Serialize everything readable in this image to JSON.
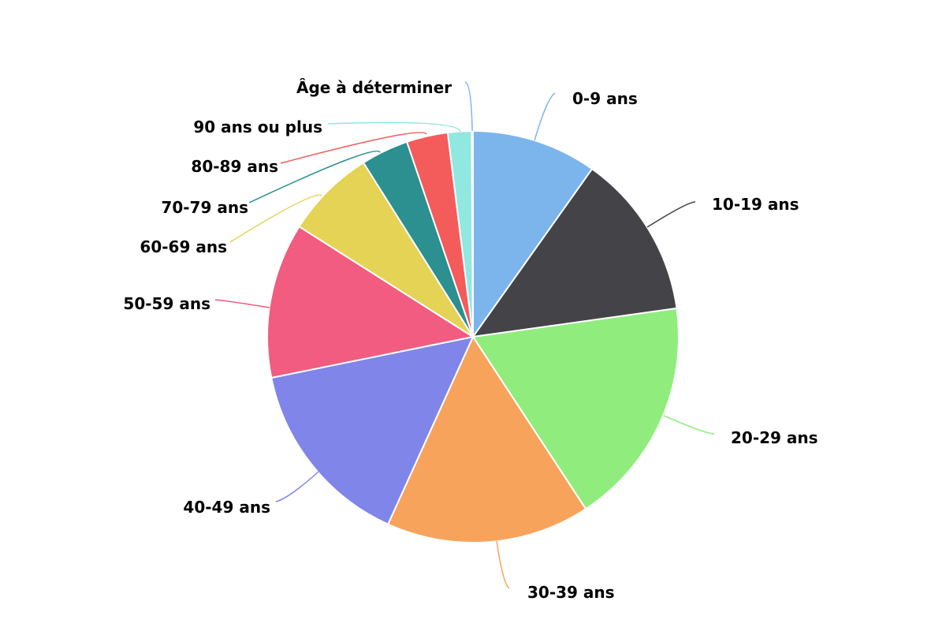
{
  "chart_data": {
    "type": "pie",
    "title": "",
    "start_angle_deg": 0,
    "direction": "clockwise",
    "slices": [
      {
        "label": "0-9 ans",
        "value": 10.0,
        "color": "#7cb5ec"
      },
      {
        "label": "10-19 ans",
        "value": 13.2,
        "color": "#434348"
      },
      {
        "label": "20-29 ans",
        "value": 18.3,
        "color": "#90ed7d"
      },
      {
        "label": "30-39 ans",
        "value": 16.3,
        "color": "#f7a35c"
      },
      {
        "label": "40-49 ans",
        "value": 15.3,
        "color": "#8085e9"
      },
      {
        "label": "50-59 ans",
        "value": 12.4,
        "color": "#f15c80"
      },
      {
        "label": "60-69 ans",
        "value": 7.2,
        "color": "#e4d354"
      },
      {
        "label": "70-79 ans",
        "value": 3.8,
        "color": "#2b908f"
      },
      {
        "label": "80-89 ans",
        "value": 3.3,
        "color": "#f45b5b"
      },
      {
        "label": "90 ans ou plus",
        "value": 1.9,
        "color": "#91e8e1"
      },
      {
        "label": "Âge à déterminer",
        "value": 0.1,
        "color": "#7cb5ec"
      }
    ]
  }
}
